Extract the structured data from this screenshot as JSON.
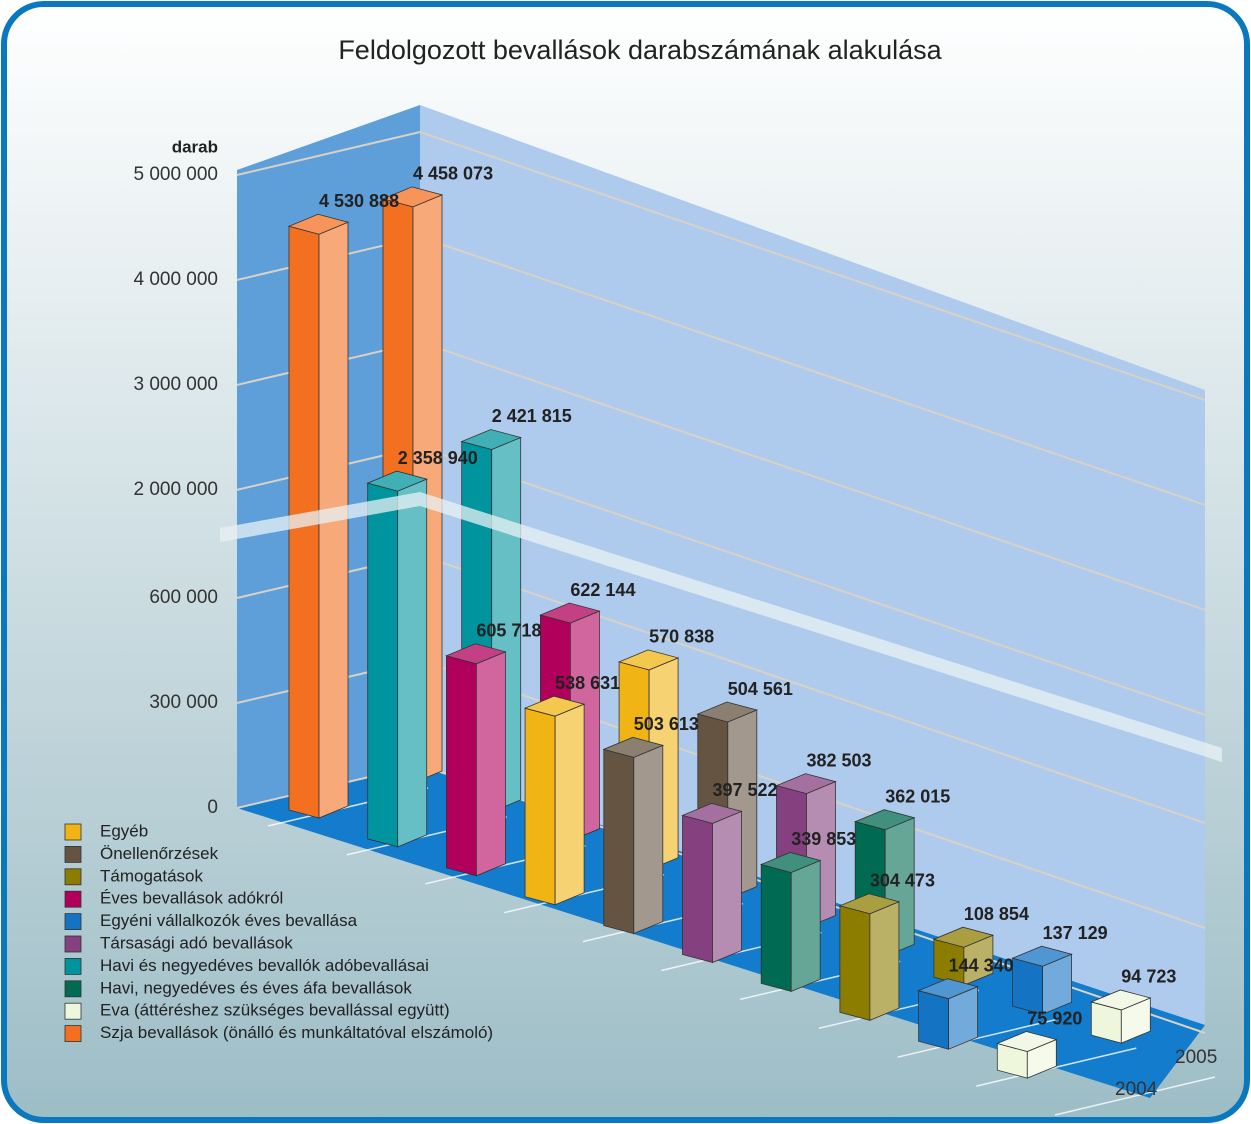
{
  "chart_data": {
    "type": "bar3d",
    "title": "Feldolgozott bevallások darabszámának alakulása",
    "y_label": "darab",
    "categories": [
      "Egyéb",
      "Önellenőrzések",
      "Támogatások",
      "Éves bevallások adókról",
      "Egyéni vállalkozók éves bevallása",
      "Társasági adó bevallások",
      "Havi és negyedéves bevallók adóbevallásai",
      "Havi, negyedéves és éves áfa bevallások",
      "Eva (áttéréshez szükséges bevallással együtt)",
      "Szja bevallások (önálló és munkáltatóval elszámoló)"
    ],
    "colors": [
      "#f0b414",
      "#645441",
      "#8c7d00",
      "#b0005c",
      "#1473c3",
      "#84407f",
      "#00949e",
      "#006b52",
      "#eef6dc",
      "#f37021"
    ],
    "series": [
      {
        "name": "2004",
        "values": [
          538631,
          503613,
          304473,
          605718,
          144340,
          397522,
          2358940,
          339853,
          75920,
          4530888
        ],
        "value_labels": [
          "538 631",
          "503 613",
          "304 473",
          "605 718",
          "144 340",
          "397 522",
          "2 358 940",
          "339 853",
          "75 920",
          "4 530 888"
        ]
      },
      {
        "name": "2005",
        "values": [
          570838,
          504561,
          108854,
          622144,
          137129,
          382503,
          2421815,
          362015,
          94723,
          4458073
        ],
        "value_labels": [
          "570 838",
          "504 561",
          "108 854",
          "622 144",
          "137 129",
          "382 503",
          "2 421 815",
          "362 015",
          "94 723",
          "4 458 073"
        ]
      }
    ],
    "ylim": [
      0,
      5000000
    ],
    "ybreak": [
      780000,
      1570000
    ],
    "yticks": [
      0,
      {
        "value": 300000,
        "label": "300 000"
      },
      {
        "value": 600000,
        "label": "600 000"
      },
      {
        "value": 2000000,
        "label": "2 000 000"
      },
      {
        "value": 3000000,
        "label": "3 000 000"
      },
      {
        "value": 4000000,
        "label": "4 000 000"
      },
      {
        "value": 5000000,
        "label": "5 000 000"
      }
    ],
    "grid": true
  }
}
